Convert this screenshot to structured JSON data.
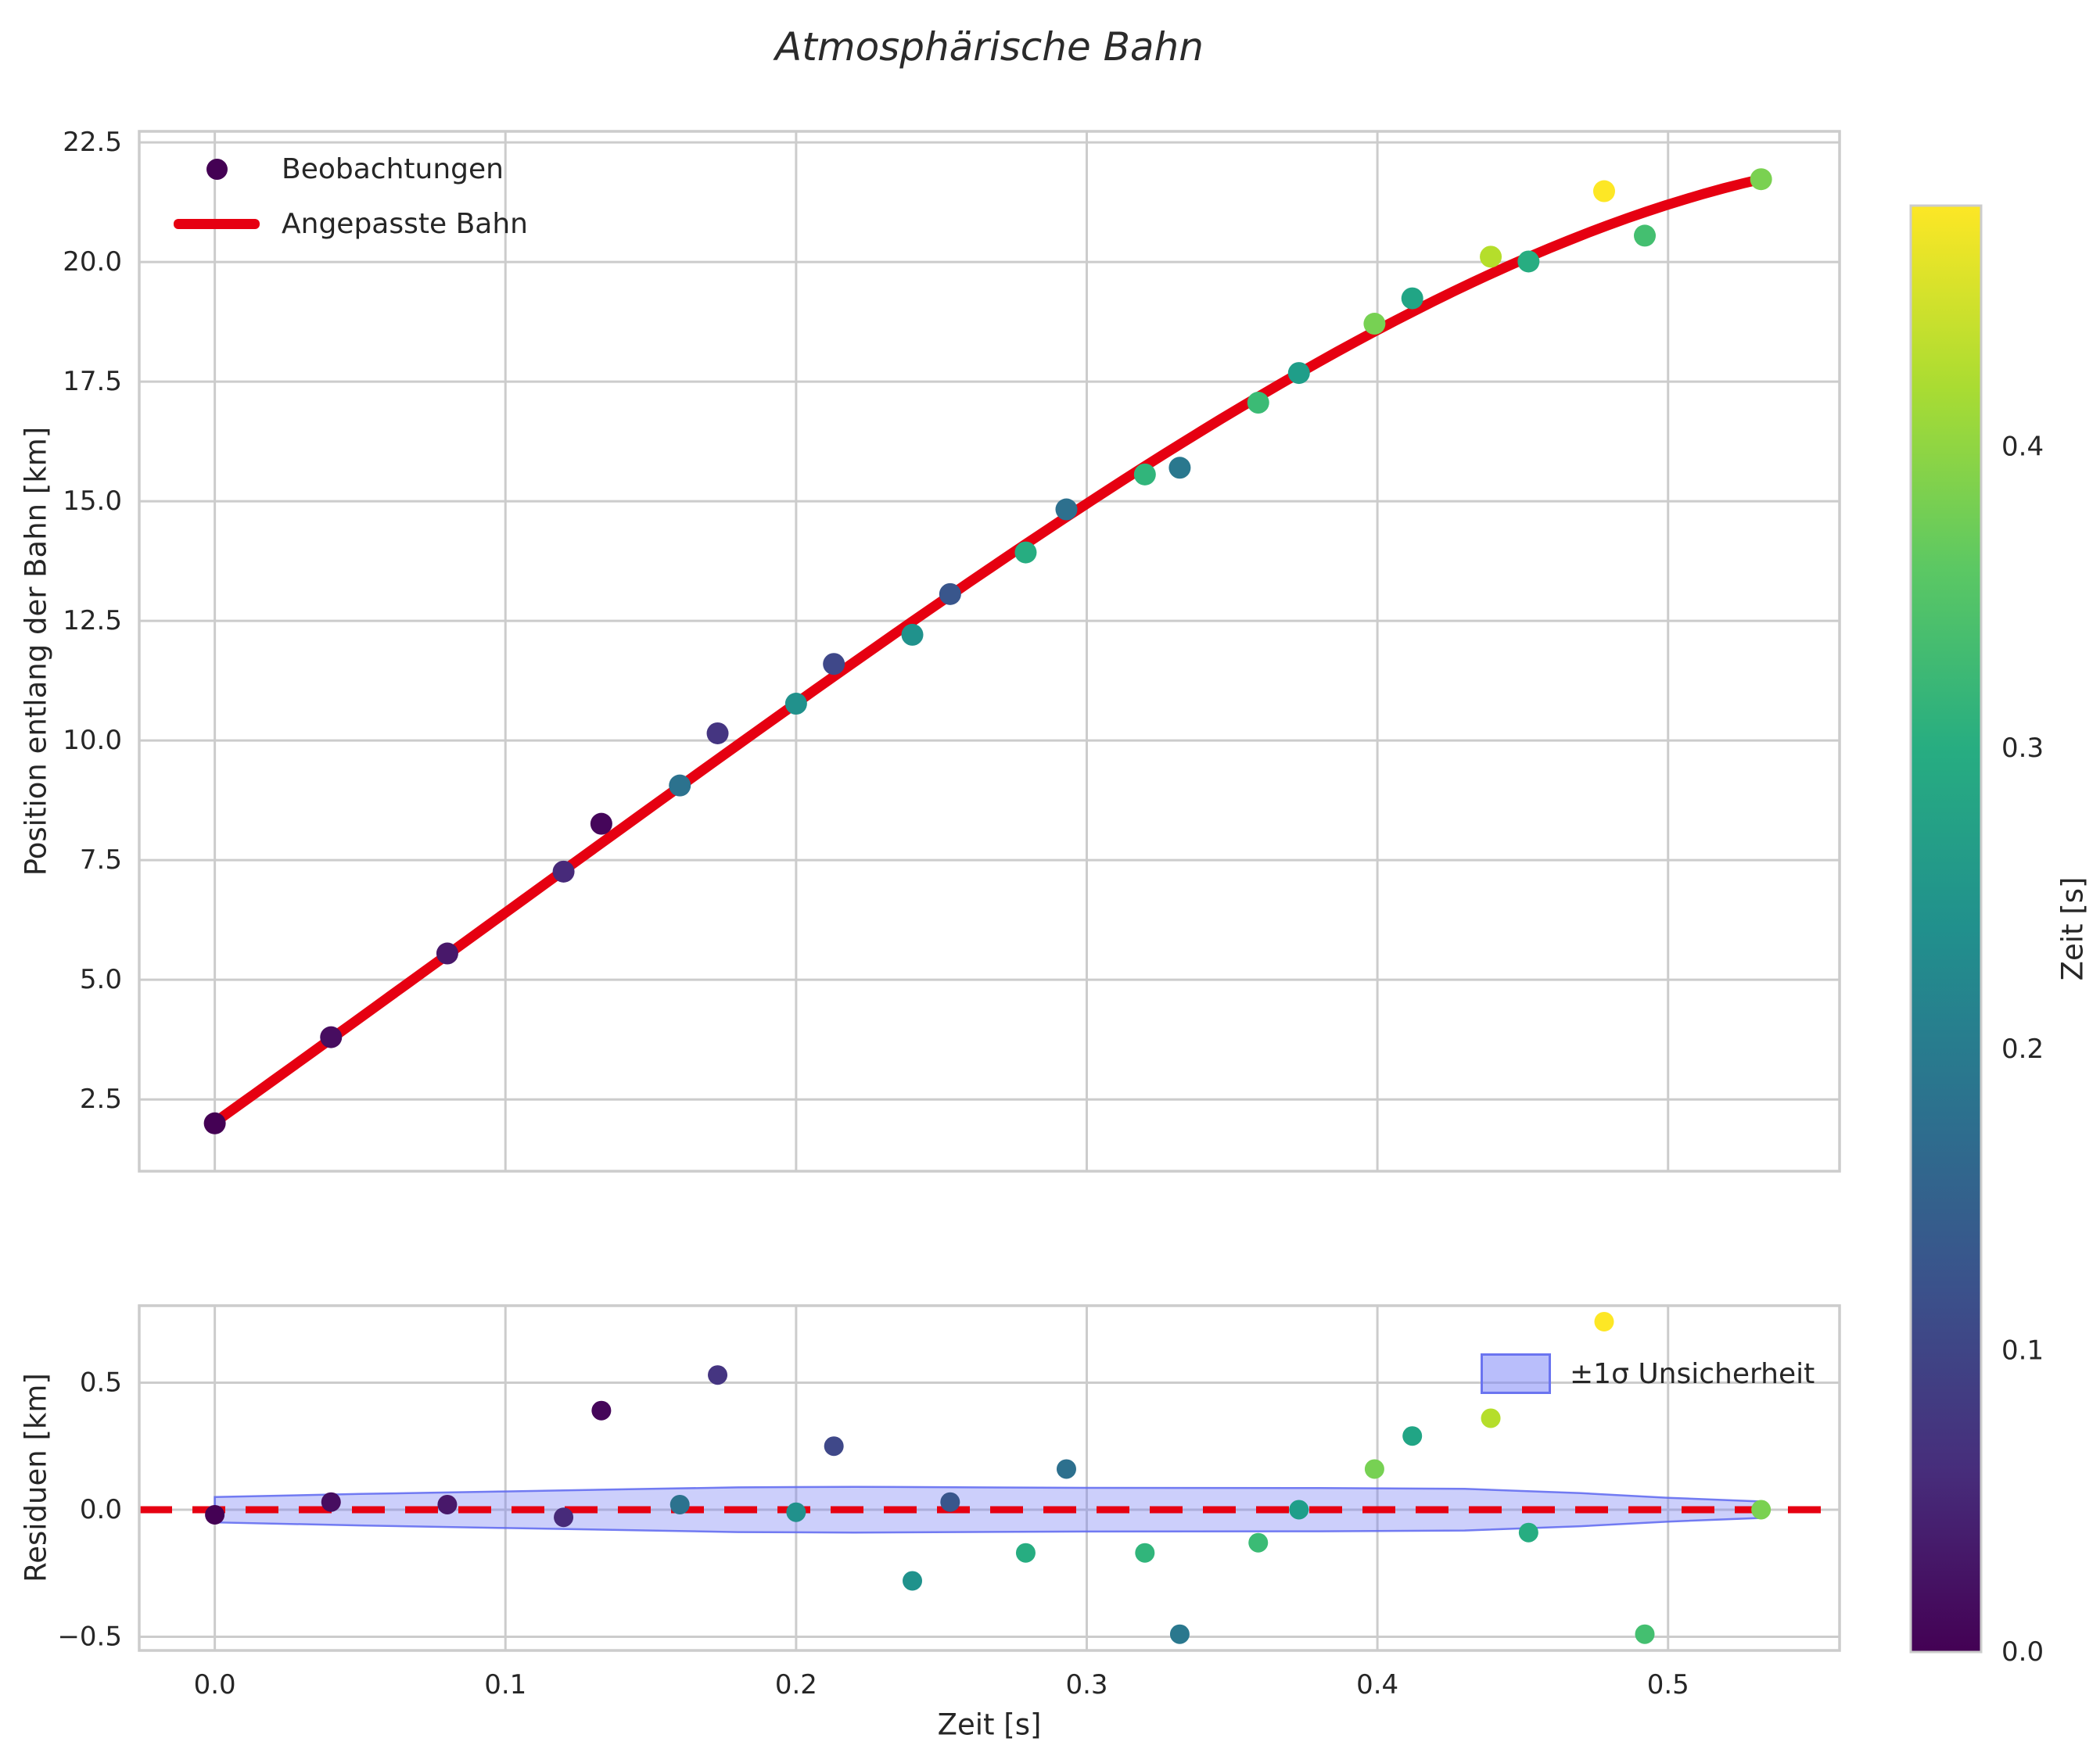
{
  "title": "Atmosphärische Bahn",
  "top_plot": {
    "ylabel": "Position entlang der Bahn [km]",
    "y_tick_labels": [
      "2.5",
      "5.0",
      "7.5",
      "10.0",
      "12.5",
      "15.0",
      "17.5",
      "20.0",
      "22.5"
    ],
    "legend": [
      {
        "label": "Beobachtungen",
        "marker": "dot",
        "color": "#440154"
      },
      {
        "label": "Angepasste Bahn",
        "marker": "line",
        "color": "#e60011"
      }
    ]
  },
  "bottom_plot": {
    "ylabel": "Residuen [km]",
    "xlabel": "Zeit [s]",
    "y_tick_labels": [
      "−0.5",
      "0.0",
      "0.5"
    ],
    "x_tick_labels": [
      "0.0",
      "0.1",
      "0.2",
      "0.3",
      "0.4",
      "0.5"
    ],
    "legend": [
      {
        "label": "±1σ Unsicherheit",
        "marker": "patch",
        "fill": "#b4bbf7",
        "edge": "#6b74f0"
      }
    ]
  },
  "colorbar": {
    "label": "Zeit [s]",
    "tick_labels": [
      "0.0",
      "0.1",
      "0.2",
      "0.3",
      "0.4"
    ]
  },
  "chart_data": {
    "type": "scatter",
    "title": "Atmosphärische Bahn",
    "xlabel": "Zeit [s]",
    "ylabel_main": "Position entlang der Bahn [km]",
    "ylabel_resid": "Residuen [km]",
    "grid": true,
    "xlim": [
      -0.026,
      0.559
    ],
    "ylim_main": [
      1.0,
      22.73
    ],
    "ylim_resid": [
      -0.554,
      0.803
    ],
    "x_ticks": [
      0.0,
      0.1,
      0.2,
      0.3,
      0.4,
      0.5
    ],
    "y_ticks_main": [
      2.5,
      5.0,
      7.5,
      10.0,
      12.5,
      15.0,
      17.5,
      20.0,
      22.5
    ],
    "y_ticks_resid": [
      -0.5,
      0.0,
      0.5
    ],
    "grid_color": "#cccccc",
    "spine_color": "#cccccc",
    "text_color": "#262626",
    "accent_red": "#e60011",
    "observations": [
      {
        "t": 0.0,
        "s": 2.0,
        "resid": -0.02,
        "color": "#440154"
      },
      {
        "t": 0.04,
        "s": 3.8,
        "resid": 0.03,
        "color": "#470d60"
      },
      {
        "t": 0.08,
        "s": 5.55,
        "resid": 0.02,
        "color": "#48186a"
      },
      {
        "t": 0.12,
        "s": 7.26,
        "resid": -0.03,
        "color": "#472a7a"
      },
      {
        "t": 0.133,
        "s": 8.26,
        "resid": 0.39,
        "color": "#45065a"
      },
      {
        "t": 0.16,
        "s": 9.06,
        "resid": 0.02,
        "color": "#2c728e"
      },
      {
        "t": 0.173,
        "s": 10.15,
        "resid": 0.53,
        "color": "#453581"
      },
      {
        "t": 0.2,
        "s": 10.77,
        "resid": -0.01,
        "color": "#21918c"
      },
      {
        "t": 0.213,
        "s": 11.6,
        "resid": 0.25,
        "color": "#3f4889"
      },
      {
        "t": 0.24,
        "s": 12.21,
        "resid": -0.28,
        "color": "#20928c"
      },
      {
        "t": 0.253,
        "s": 13.06,
        "resid": 0.03,
        "color": "#39568c"
      },
      {
        "t": 0.279,
        "s": 13.93,
        "resid": -0.17,
        "color": "#27ad81"
      },
      {
        "t": 0.293,
        "s": 14.83,
        "resid": 0.16,
        "color": "#2d708e"
      },
      {
        "t": 0.32,
        "s": 15.56,
        "resid": -0.17,
        "color": "#31b57b"
      },
      {
        "t": 0.332,
        "s": 15.7,
        "resid": -0.49,
        "color": "#2a788e"
      },
      {
        "t": 0.359,
        "s": 17.06,
        "resid": -0.13,
        "color": "#3bbb75"
      },
      {
        "t": 0.373,
        "s": 17.68,
        "resid": 0.0,
        "color": "#1f9e89"
      },
      {
        "t": 0.399,
        "s": 18.71,
        "resid": 0.16,
        "color": "#77d153"
      },
      {
        "t": 0.412,
        "s": 19.24,
        "resid": 0.29,
        "color": "#21a585"
      },
      {
        "t": 0.439,
        "s": 20.11,
        "resid": 0.36,
        "color": "#b5de2b"
      },
      {
        "t": 0.452,
        "s": 20.01,
        "resid": -0.09,
        "color": "#27ad81"
      },
      {
        "t": 0.478,
        "s": 21.48,
        "resid": 0.74,
        "color": "#fde725"
      },
      {
        "t": 0.492,
        "s": 20.55,
        "resid": -0.49,
        "color": "#44bf70"
      },
      {
        "t": 0.532,
        "s": 21.73,
        "resid": 0.0,
        "color": "#7ad151"
      }
    ],
    "fit_curve": {
      "poly_coeffs": [
        2.02,
        43.53,
        3.56,
        0.0,
        -55.6
      ],
      "t_start": 0.0,
      "t_end": 0.5325,
      "color": "#e60011",
      "width": 13
    },
    "zero_line": {
      "color": "#e60011",
      "dash": [
        42,
        26
      ],
      "width": 9
    },
    "uncertainty_band": {
      "t": [
        0.0,
        0.05,
        0.1,
        0.15,
        0.18,
        0.22,
        0.3,
        0.38,
        0.43,
        0.47,
        0.5,
        0.533
      ],
      "sigma": [
        0.05,
        0.062,
        0.072,
        0.082,
        0.088,
        0.09,
        0.086,
        0.085,
        0.082,
        0.065,
        0.047,
        0.032
      ],
      "fill": "rgba(108,117,244,0.35)",
      "edge": "rgba(93,103,240,0.85)"
    },
    "colorbar": {
      "label": "Zeit [s]",
      "vmin": 0.0,
      "vmax": 0.48,
      "ticks": [
        0.0,
        0.1,
        0.2,
        0.3,
        0.4
      ],
      "viridis_stops": [
        "#440154",
        "#472d7b",
        "#3b518b",
        "#2c718e",
        "#21908d",
        "#27ad81",
        "#5cc863",
        "#aadc32",
        "#fde725"
      ]
    },
    "legend_position_main": "upper left",
    "legend_position_resid": "upper right"
  }
}
